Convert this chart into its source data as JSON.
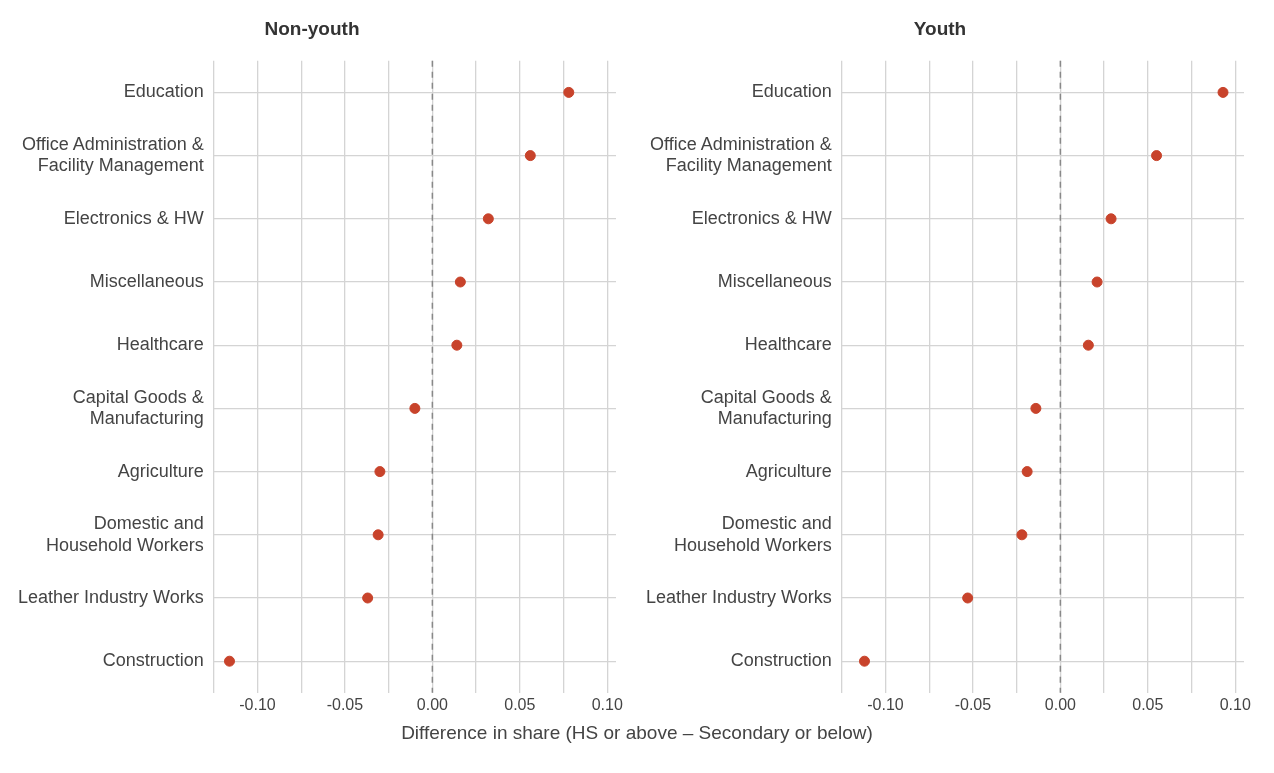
{
  "chart_data": [
    {
      "type": "scatter",
      "title": "Non-youth",
      "xlabel": "Difference in share (HS or above – Secondary or below)",
      "orientation": "horizontal",
      "categories": [
        "Education",
        "Office Administration &\nFacility Management",
        "Electronics & HW",
        "Miscellaneous",
        "Healthcare",
        "Capital Goods &\nManufacturing",
        "Agriculture",
        "Domestic and\nHousehold Workers",
        "Leather Industry Works",
        "Construction"
      ],
      "series": [
        {
          "color": "#c8432b",
          "values": [
            0.078,
            0.056,
            0.032,
            0.016,
            0.014,
            -0.01,
            -0.03,
            -0.031,
            -0.037,
            -0.116
          ]
        }
      ],
      "xlim": [
        -0.125,
        0.105
      ],
      "xticks": [
        {
          "value": -0.125,
          "label": null
        },
        {
          "value": -0.1,
          "label": "-0.10"
        },
        {
          "value": -0.075,
          "label": null
        },
        {
          "value": -0.05,
          "label": "-0.05"
        },
        {
          "value": -0.025,
          "label": null
        },
        {
          "value": 0,
          "label": "0.00"
        },
        {
          "value": 0.025,
          "label": null
        },
        {
          "value": 0.05,
          "label": "0.05"
        },
        {
          "value": 0.075,
          "label": null
        },
        {
          "value": 0.1,
          "label": "0.10"
        }
      ],
      "ref_lines": [
        {
          "axis": "x",
          "value": 0,
          "color": "#888888",
          "line_style": "dashed"
        }
      ],
      "grid": true,
      "marker": "circle"
    },
    {
      "type": "scatter",
      "title": "Youth",
      "orientation": "horizontal",
      "categories": [
        "Education",
        "Office Administration &\nFacility Management",
        "Electronics & HW",
        "Miscellaneous",
        "Healthcare",
        "Capital Goods &\nManufacturing",
        "Agriculture",
        "Domestic and\nHousehold Workers",
        "Leather Industry Works",
        "Construction"
      ],
      "series": [
        {
          "color": "#c8432b",
          "values": [
            0.093,
            0.055,
            0.029,
            0.021,
            0.016,
            -0.014,
            -0.019,
            -0.022,
            -0.053,
            -0.112
          ]
        }
      ],
      "xlim": [
        -0.125,
        0.105
      ],
      "xticks": [
        {
          "value": -0.125,
          "label": null
        },
        {
          "value": -0.1,
          "label": "-0.10"
        },
        {
          "value": -0.075,
          "label": null
        },
        {
          "value": -0.05,
          "label": "-0.05"
        },
        {
          "value": -0.025,
          "label": null
        },
        {
          "value": 0,
          "label": "0.00"
        },
        {
          "value": 0.025,
          "label": null
        },
        {
          "value": 0.05,
          "label": "0.05"
        },
        {
          "value": 0.075,
          "label": null
        },
        {
          "value": 0.1,
          "label": "0.10"
        }
      ],
      "ref_lines": [
        {
          "axis": "x",
          "value": 0,
          "color": "#888888",
          "line_style": "dashed"
        }
      ],
      "grid": true,
      "marker": "circle"
    }
  ]
}
